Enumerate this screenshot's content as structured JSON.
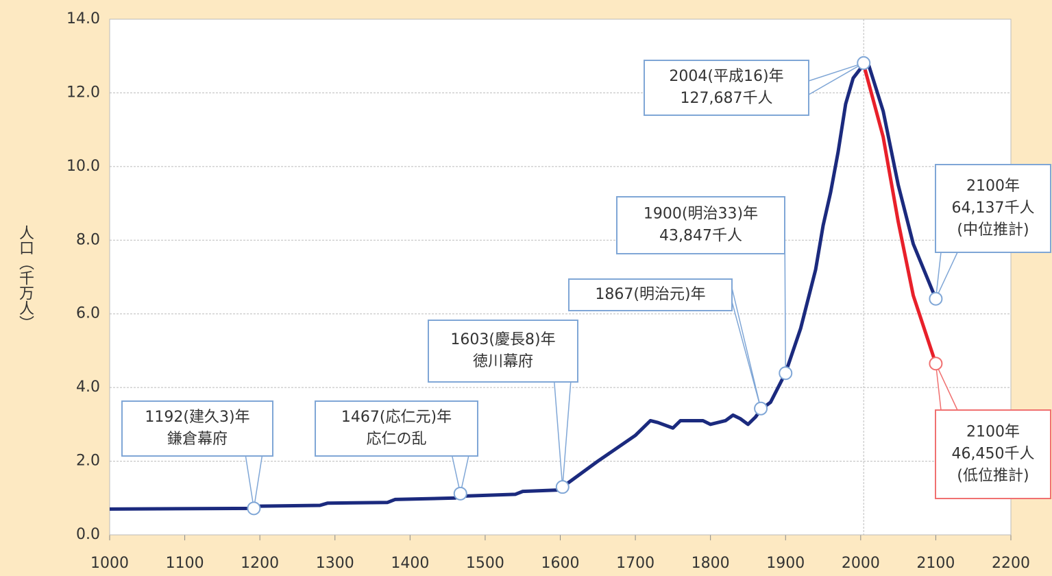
{
  "chart_data": {
    "type": "line",
    "y_label": "人口（千万人）",
    "xlim": [
      1000,
      2200
    ],
    "xticks": [
      1000,
      1100,
      1200,
      1300,
      1400,
      1500,
      1600,
      1700,
      1800,
      1900,
      2000,
      2100,
      2200
    ],
    "ylim": [
      0,
      14
    ],
    "yticks": [
      {
        "value": 0,
        "label": "0.0"
      },
      {
        "value": 2,
        "label": "2.0"
      },
      {
        "value": 4,
        "label": "4.0"
      },
      {
        "value": 6,
        "label": "6.0"
      },
      {
        "value": 8,
        "label": "8.0"
      },
      {
        "value": 10,
        "label": "10.0"
      },
      {
        "value": 12,
        "label": "12.0"
      },
      {
        "value": 14,
        "label": "14.0"
      }
    ],
    "grid": true,
    "vline": 2004,
    "series": [
      {
        "color": "#1b2a7e",
        "x": [
          1000,
          1192,
          1200,
          1280,
          1290,
          1370,
          1380,
          1460,
          1467,
          1540,
          1550,
          1600,
          1603,
          1650,
          1700,
          1720,
          1730,
          1750,
          1760,
          1790,
          1800,
          1820,
          1830,
          1840,
          1850,
          1860,
          1867,
          1880,
          1900,
          1920,
          1940,
          1950,
          1960,
          1970,
          1980,
          1990,
          2004,
          2010,
          2030,
          2050,
          2070,
          2100
        ],
        "values": [
          0.7,
          0.72,
          0.78,
          0.8,
          0.86,
          0.88,
          0.96,
          1.0,
          1.05,
          1.1,
          1.18,
          1.22,
          1.3,
          2.0,
          2.7,
          3.1,
          3.05,
          2.9,
          3.1,
          3.1,
          3.0,
          3.1,
          3.25,
          3.15,
          3.0,
          3.2,
          3.4,
          3.6,
          4.4,
          5.6,
          7.2,
          8.4,
          9.3,
          10.4,
          11.7,
          12.4,
          12.77,
          12.8,
          11.5,
          9.5,
          7.9,
          6.41
        ]
      },
      {
        "color": "#e8202a",
        "x": [
          2004,
          2030,
          2050,
          2070,
          2100
        ],
        "values": [
          12.77,
          10.8,
          8.5,
          6.5,
          4.65
        ]
      }
    ],
    "annotations": [
      {
        "x": 1192,
        "y": 0.72,
        "lines": [
          "1192(建久3)年",
          "鎌倉幕府"
        ]
      },
      {
        "x": 1467,
        "y": 1.12,
        "lines": [
          "1467(応仁元)年",
          "応仁の乱"
        ]
      },
      {
        "x": 1603,
        "y": 1.3,
        "lines": [
          "1603(慶長8)年",
          "徳川幕府"
        ]
      },
      {
        "x": 1867,
        "y": 3.43,
        "lines": [
          "1867(明治元)年"
        ]
      },
      {
        "x": 1900,
        "y": 4.39,
        "lines": [
          "1900(明治33)年",
          "43,847千人"
        ]
      },
      {
        "x": 2004,
        "y": 12.81,
        "lines": [
          "2004(平成16)年",
          "127,687千人"
        ]
      },
      {
        "x": 2100,
        "y": 6.41,
        "lines": [
          "2100年",
          "64,137千人",
          "(中位推計)"
        ]
      },
      {
        "x": 2100,
        "y": 4.65,
        "lines": [
          "2100年",
          "46,450千人",
          "(低位推計)"
        ]
      }
    ]
  }
}
